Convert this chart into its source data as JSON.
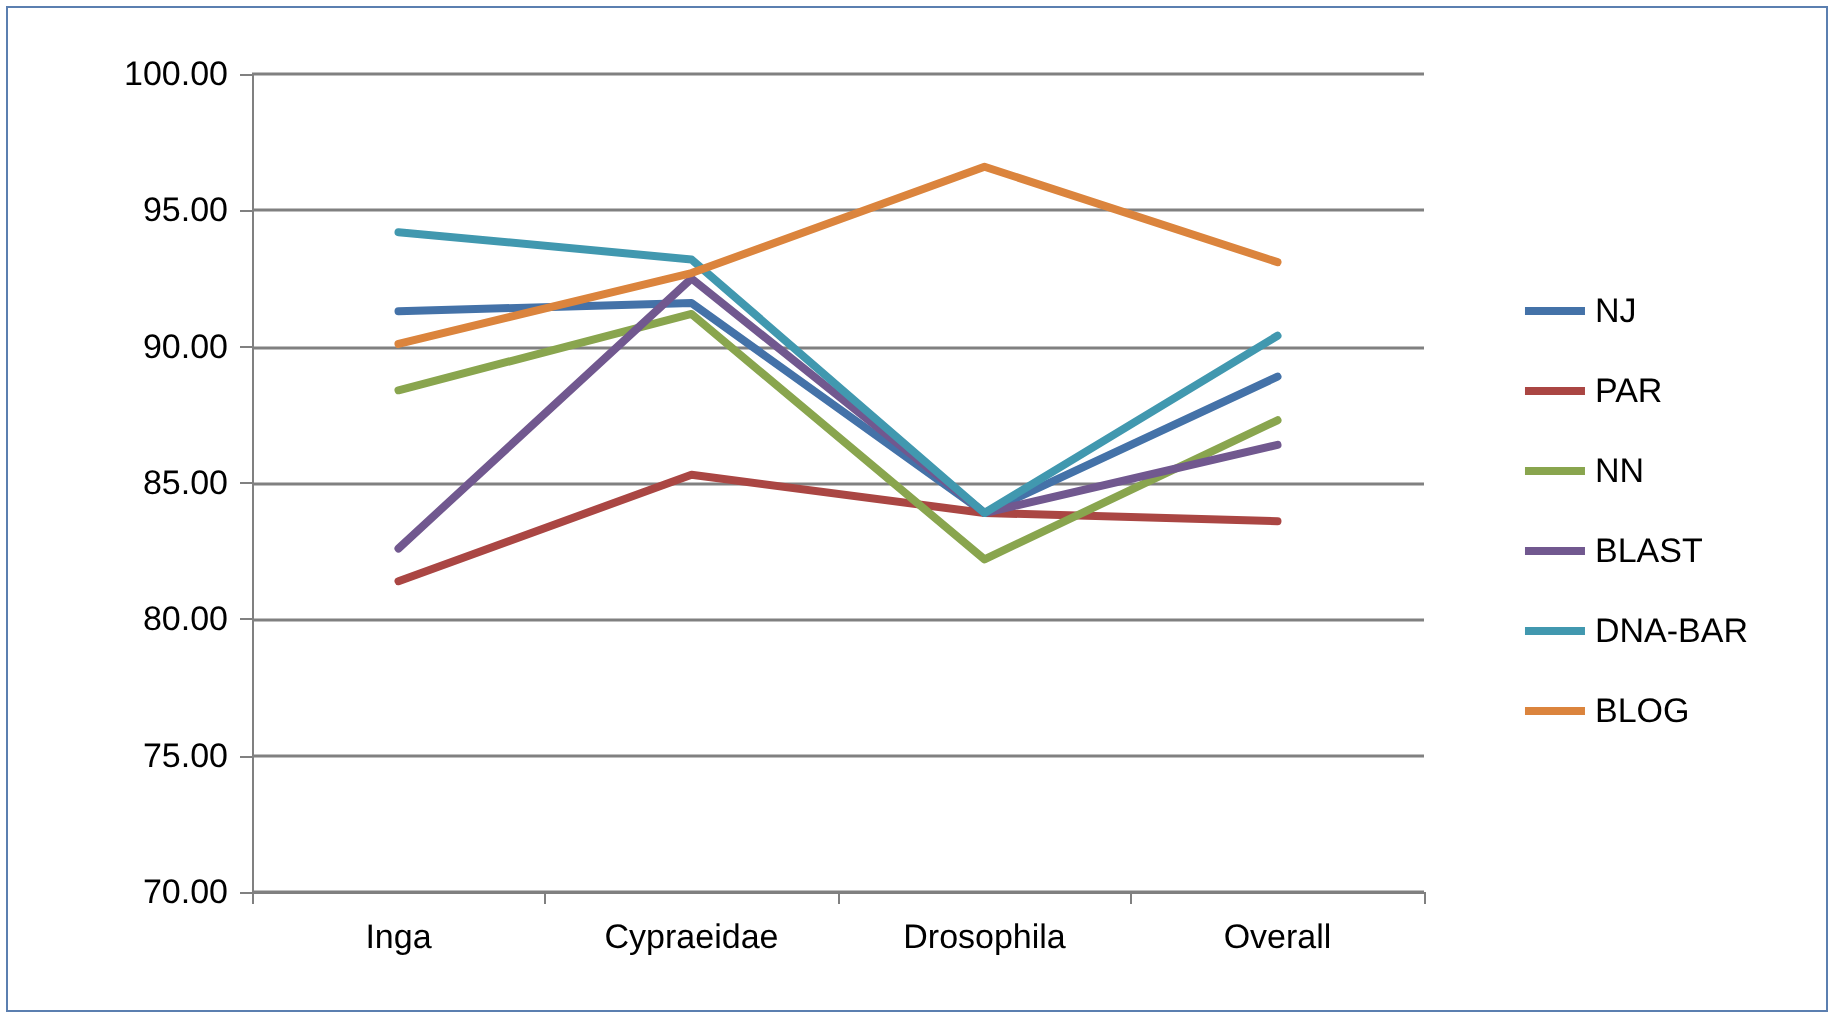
{
  "chart_data": {
    "type": "line",
    "categories": [
      "Inga",
      "Cypraeidae",
      "Drosophila",
      "Overall"
    ],
    "series": [
      {
        "name": "NJ",
        "color": "#4472a8",
        "values": [
          91.3,
          91.6,
          83.9,
          88.9
        ]
      },
      {
        "name": "PAR",
        "color": "#aa4643",
        "values": [
          81.4,
          85.3,
          83.9,
          83.6
        ]
      },
      {
        "name": "NN",
        "color": "#89a54e",
        "values": [
          88.4,
          91.2,
          82.2,
          87.3
        ]
      },
      {
        "name": "BLAST",
        "color": "#71588f",
        "values": [
          82.6,
          92.5,
          83.9,
          86.4
        ]
      },
      {
        "name": "DNA-BAR",
        "color": "#4198af",
        "values": [
          94.2,
          93.2,
          83.9,
          90.4
        ]
      },
      {
        "name": "BLOG",
        "color": "#db843d",
        "values": [
          90.1,
          92.7,
          96.6,
          93.1
        ]
      }
    ],
    "ylim": [
      70,
      100
    ],
    "yticks": [
      {
        "value": 70,
        "label": "70.00"
      },
      {
        "value": 75,
        "label": "75.00"
      },
      {
        "value": 80,
        "label": "80.00"
      },
      {
        "value": 85,
        "label": "85.00"
      },
      {
        "value": 90,
        "label": "90.00"
      },
      {
        "value": 95,
        "label": "95.00"
      },
      {
        "value": 100,
        "label": "100.00"
      }
    ],
    "grid": "y",
    "legend": "right",
    "marker": "none",
    "line_style": "solid"
  }
}
